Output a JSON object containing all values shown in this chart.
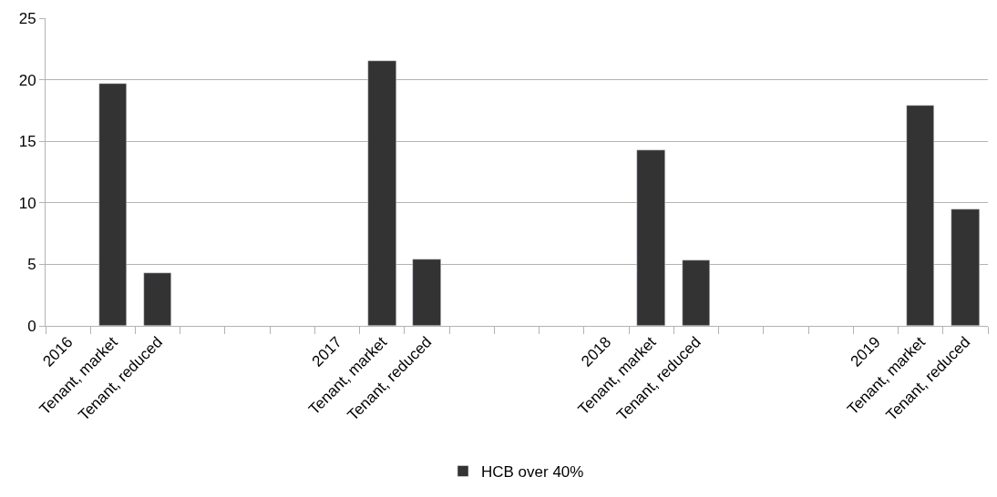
{
  "chart_data": {
    "type": "bar",
    "categories": [
      "2016",
      "Tenant, market",
      "Tenant, reduced",
      null,
      null,
      null,
      "2017",
      "Tenant, market",
      "Tenant, reduced",
      null,
      null,
      null,
      "2018",
      "Tenant, market",
      "Tenant, reduced",
      null,
      null,
      null,
      "2019",
      "Tenant, market",
      "Tenant, reduced"
    ],
    "series": [
      {
        "name": "HCB over 40%",
        "color": "#333333",
        "values": [
          null,
          19.7,
          4.3,
          null,
          null,
          null,
          null,
          21.5,
          5.4,
          null,
          null,
          null,
          null,
          14.3,
          5.3,
          null,
          null,
          null,
          null,
          17.9,
          9.5
        ]
      }
    ],
    "ylim": [
      0,
      25
    ],
    "yticks": [
      0,
      5,
      10,
      15,
      20,
      25
    ],
    "grid": "y",
    "legend": "bottom"
  }
}
